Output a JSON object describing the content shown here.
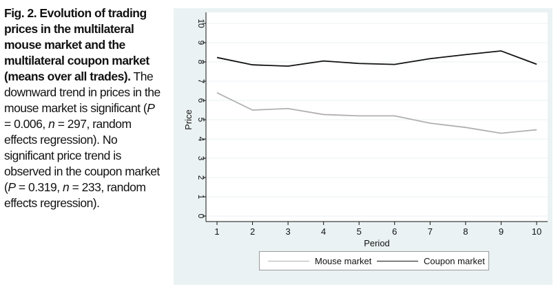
{
  "caption": {
    "bold": "Fig. 2. Evolution of trading prices in the multilateral mouse market and the multilateral coupon market (means over all trades).",
    "text": [
      {
        "t": " The downward trend in prices in the mouse market is significant ("
      },
      {
        "t": "P",
        "it": true
      },
      {
        "t": " = 0.006, "
      },
      {
        "t": "n",
        "it": true
      },
      {
        "t": " = 297, random effects regression). No significant price trend is observed in the coupon market ("
      },
      {
        "t": "P",
        "it": true
      },
      {
        "t": " = 0.319, "
      },
      {
        "t": "n",
        "it": true
      },
      {
        "t": " = 233, random effects regression)."
      }
    ]
  },
  "chart_data": {
    "type": "line",
    "title": "",
    "xlabel": "Period",
    "ylabel": "Price",
    "x": [
      1,
      2,
      3,
      4,
      5,
      6,
      7,
      8,
      9,
      10
    ],
    "xlim": [
      1,
      10
    ],
    "ylim": [
      0,
      10
    ],
    "yticks": [
      0,
      1,
      2,
      3,
      4,
      5,
      6,
      7,
      8,
      9,
      10
    ],
    "xticks": [
      1,
      2,
      3,
      4,
      5,
      6,
      7,
      8,
      9,
      10
    ],
    "grid": "horizontal",
    "legend_position": "bottom",
    "series": [
      {
        "name": "Mouse market",
        "color": "#b0b0b0",
        "values": [
          6.4,
          5.5,
          5.58,
          5.27,
          5.2,
          5.2,
          4.82,
          4.6,
          4.3,
          4.48
        ]
      },
      {
        "name": "Coupon market",
        "color": "#111111",
        "values": [
          8.23,
          7.85,
          7.78,
          8.05,
          7.92,
          7.87,
          8.17,
          8.38,
          8.57,
          7.88
        ]
      }
    ]
  }
}
